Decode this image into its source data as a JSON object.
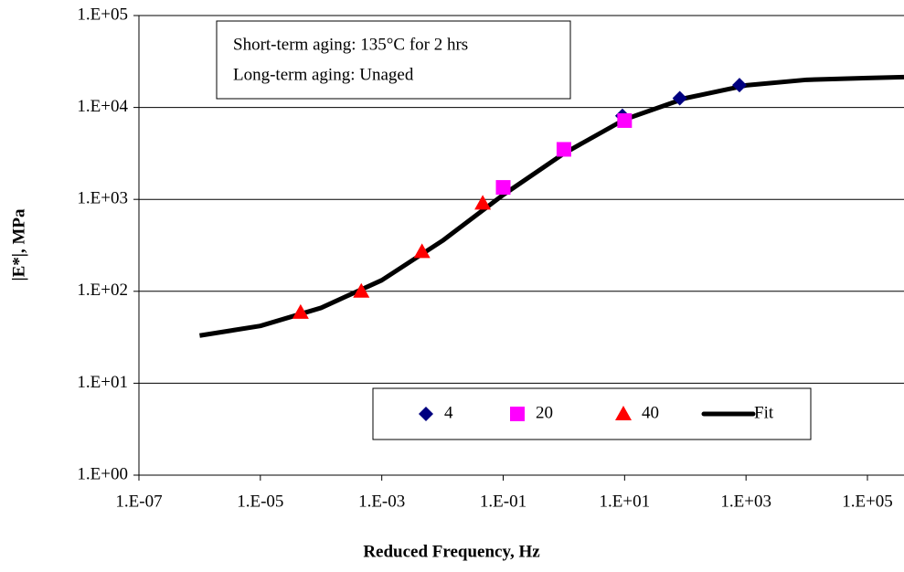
{
  "chart_data": {
    "type": "scatter",
    "x_label": "Reduced Frequency, Hz",
    "y_label": "|E*|, MPa",
    "annotations": [
      "Short-term aging: 135°C for 2 hrs",
      "Long-term aging: Unaged"
    ],
    "xscale": "log",
    "yscale": "log",
    "grid": true,
    "legend": "bottom",
    "xlim": [
      1e-07,
      400000
    ],
    "ylim": [
      1,
      100000
    ],
    "xticks": [
      {
        "value": 1e-07,
        "label": "1.E-07"
      },
      {
        "value": 1e-05,
        "label": "1.E-05"
      },
      {
        "value": 0.001,
        "label": "1.E-03"
      },
      {
        "value": 0.1,
        "label": "1.E-01"
      },
      {
        "value": 10,
        "label": "1.E+01"
      },
      {
        "value": 1000,
        "label": "1.E+03"
      },
      {
        "value": 100000,
        "label": "1.E+05"
      }
    ],
    "yticks": [
      {
        "value": 1,
        "label": "1.E+00"
      },
      {
        "value": 10,
        "label": "1.E+01"
      },
      {
        "value": 100,
        "label": "1.E+02"
      },
      {
        "value": 1000,
        "label": "1.E+03"
      },
      {
        "value": 10000,
        "label": "1.E+04"
      },
      {
        "value": 100000,
        "label": "1.E+05"
      }
    ],
    "series": [
      {
        "name": "4",
        "color": "#000080",
        "marker": "diamond",
        "x": [
          9.2,
          81,
          780
        ],
        "values": [
          8100,
          12600,
          17500
        ]
      },
      {
        "name": "20",
        "color": "#ff00ff",
        "marker": "square",
        "x": [
          0.1,
          1,
          10
        ],
        "values": [
          1350,
          3500,
          7200
        ]
      },
      {
        "name": "40",
        "color": "#ff0000",
        "marker": "triangle",
        "x": [
          4.6e-05,
          0.00046,
          0.0046,
          0.046
        ],
        "values": [
          59,
          100,
          270,
          910
        ]
      },
      {
        "name": "Fit",
        "color": "#000000",
        "marker": "line",
        "x": [
          1e-06,
          1e-05,
          0.0001,
          0.001,
          0.01,
          0.1,
          1,
          10,
          100,
          1000,
          10000,
          100000,
          400000
        ],
        "values": [
          33,
          42,
          66,
          132,
          355,
          1120,
          3160,
          7400,
          12600,
          17400,
          20000,
          20900,
          21400
        ]
      }
    ]
  }
}
